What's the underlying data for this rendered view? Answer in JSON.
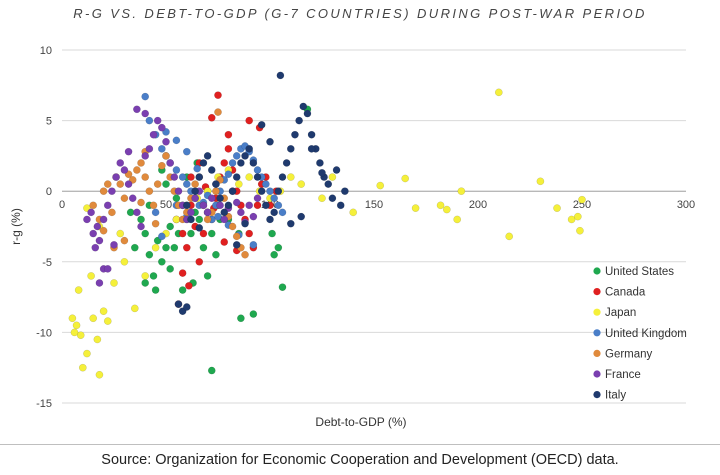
{
  "chart_data": {
    "type": "scatter",
    "title": "R-G VS. DEBT-TO-GDP (G-7 COUNTRIES) DURING POST-WAR PERIOD",
    "xlabel": "Debt-to-GDP (%)",
    "ylabel": "r-g (%)",
    "xlim": [
      0,
      300
    ],
    "ylim": [
      -15,
      10
    ],
    "x_ticks": [
      0,
      50,
      100,
      150,
      200,
      250,
      300
    ],
    "y_ticks": [
      -15,
      -10,
      -5,
      0,
      5,
      10
    ],
    "grid": "horizontal",
    "legend_position": "right",
    "series": [
      {
        "name": "United States",
        "color": "#1fa84f",
        "points": [
          [
            35,
            -4
          ],
          [
            38,
            -2
          ],
          [
            40,
            -3
          ],
          [
            42,
            -4.5
          ],
          [
            44,
            -6
          ],
          [
            46,
            -3.5
          ],
          [
            48,
            -5
          ],
          [
            50,
            -4
          ],
          [
            52,
            -2.5
          ],
          [
            54,
            -4
          ],
          [
            56,
            -3
          ],
          [
            58,
            -1
          ],
          [
            60,
            -2
          ],
          [
            62,
            -3
          ],
          [
            64,
            -1.5
          ],
          [
            66,
            -2
          ],
          [
            68,
            -4
          ],
          [
            70,
            -6
          ],
          [
            72,
            -3
          ],
          [
            74,
            -4.5
          ],
          [
            76,
            -2
          ],
          [
            42,
            -1
          ],
          [
            50,
            0.5
          ],
          [
            55,
            -0.5
          ],
          [
            60,
            1
          ],
          [
            65,
            2
          ],
          [
            70,
            0
          ],
          [
            75,
            -1
          ],
          [
            80,
            -2
          ],
          [
            85,
            -3
          ],
          [
            48,
            1.5
          ],
          [
            52,
            -5.5
          ],
          [
            45,
            -7
          ],
          [
            58,
            -7
          ],
          [
            63,
            -6.5
          ],
          [
            72,
            -12.7
          ],
          [
            86,
            -9
          ],
          [
            92,
            -8.7
          ],
          [
            101,
            -3
          ],
          [
            102,
            -4.5
          ],
          [
            104,
            -4
          ],
          [
            106,
            -6.8
          ],
          [
            118,
            5.8
          ],
          [
            40,
            -6.5
          ],
          [
            33,
            -1.5
          ]
        ]
      },
      {
        "name": "Canada",
        "color": "#e02020",
        "points": [
          [
            55,
            -2
          ],
          [
            58,
            -3
          ],
          [
            60,
            -4
          ],
          [
            62,
            -1
          ],
          [
            64,
            -2.5
          ],
          [
            66,
            -5
          ],
          [
            68,
            -3
          ],
          [
            70,
            -1.5
          ],
          [
            72,
            -2
          ],
          [
            74,
            -0.5
          ],
          [
            76,
            1
          ],
          [
            78,
            2
          ],
          [
            80,
            3
          ],
          [
            82,
            1.5
          ],
          [
            84,
            0
          ],
          [
            86,
            -1
          ],
          [
            88,
            -2
          ],
          [
            90,
            -3
          ],
          [
            92,
            -4
          ],
          [
            94,
            -1
          ],
          [
            96,
            0.5
          ],
          [
            98,
            1
          ],
          [
            72,
            5.2
          ],
          [
            75,
            6.8
          ],
          [
            80,
            4
          ],
          [
            90,
            5
          ],
          [
            95,
            4.5
          ],
          [
            58,
            -5.8
          ],
          [
            56,
            -8
          ],
          [
            61,
            -6.7
          ],
          [
            62,
            1
          ],
          [
            66,
            2
          ],
          [
            69,
            0.3
          ],
          [
            73,
            -1.2
          ],
          [
            78,
            -3.6
          ],
          [
            84,
            -4.2
          ],
          [
            100,
            -1
          ],
          [
            103,
            0
          ]
        ]
      },
      {
        "name": "Japan",
        "color": "#f5f03a",
        "points": [
          [
            5,
            -9
          ],
          [
            6,
            -10
          ],
          [
            7,
            -9.5
          ],
          [
            8,
            -7
          ],
          [
            9,
            -10.2
          ],
          [
            10,
            -12.5
          ],
          [
            12,
            -11.5
          ],
          [
            14,
            -6
          ],
          [
            15,
            -9
          ],
          [
            17,
            -10.5
          ],
          [
            18,
            -13
          ],
          [
            20,
            -8.5
          ],
          [
            22,
            -9.2
          ],
          [
            25,
            -6.5
          ],
          [
            28,
            -3
          ],
          [
            30,
            -5
          ],
          [
            35,
            -8.3
          ],
          [
            40,
            -6
          ],
          [
            45,
            -4
          ],
          [
            50,
            -3
          ],
          [
            55,
            -2
          ],
          [
            60,
            -1
          ],
          [
            65,
            -0.5
          ],
          [
            70,
            0
          ],
          [
            75,
            1
          ],
          [
            80,
            1.5
          ],
          [
            85,
            0.5
          ],
          [
            90,
            1
          ],
          [
            95,
            0
          ],
          [
            100,
            -0.5
          ],
          [
            105,
            0
          ],
          [
            110,
            1
          ],
          [
            115,
            0.5
          ],
          [
            125,
            -0.5
          ],
          [
            130,
            1
          ],
          [
            140,
            -1.5
          ],
          [
            153,
            0.4
          ],
          [
            165,
            0.9
          ],
          [
            170,
            -1.2
          ],
          [
            182,
            -1
          ],
          [
            185,
            -1.3
          ],
          [
            190,
            -2
          ],
          [
            192,
            0
          ],
          [
            210,
            7
          ],
          [
            215,
            -3.2
          ],
          [
            230,
            0.7
          ],
          [
            238,
            -1.2
          ],
          [
            245,
            -2
          ],
          [
            248,
            -1.8
          ],
          [
            249,
            -2.8
          ],
          [
            250,
            -0.6
          ],
          [
            12,
            -1.2
          ],
          [
            18,
            -2.5
          ]
        ]
      },
      {
        "name": "United Kingdom",
        "color": "#4a7ec8",
        "points": [
          [
            40,
            6.7
          ],
          [
            42,
            5
          ],
          [
            45,
            4
          ],
          [
            48,
            3
          ],
          [
            50,
            2.5
          ],
          [
            52,
            2
          ],
          [
            55,
            1.5
          ],
          [
            58,
            1
          ],
          [
            60,
            0.5
          ],
          [
            62,
            0
          ],
          [
            64,
            -0.5
          ],
          [
            66,
            -1
          ],
          [
            68,
            -0.8
          ],
          [
            70,
            -1.5
          ],
          [
            72,
            -2
          ],
          [
            74,
            -1
          ],
          [
            76,
            0
          ],
          [
            78,
            0.8
          ],
          [
            80,
            1.2
          ],
          [
            82,
            2
          ],
          [
            84,
            2.5
          ],
          [
            86,
            3
          ],
          [
            88,
            3.2
          ],
          [
            90,
            2.8
          ],
          [
            92,
            2.2
          ],
          [
            94,
            1.5
          ],
          [
            96,
            1
          ],
          [
            98,
            0.5
          ],
          [
            100,
            0
          ],
          [
            102,
            -0.5
          ],
          [
            104,
            -1
          ],
          [
            106,
            -1.5
          ],
          [
            50,
            4.2
          ],
          [
            55,
            3.6
          ],
          [
            60,
            2.8
          ],
          [
            65,
            1.6
          ],
          [
            70,
            -0.3
          ],
          [
            75,
            -1.8
          ],
          [
            80,
            -2.4
          ],
          [
            85,
            -3.1
          ],
          [
            92,
            -3.8
          ],
          [
            45,
            -1.5
          ],
          [
            48,
            -3.2
          ],
          [
            55,
            -1
          ],
          [
            60,
            -1.8
          ]
        ]
      },
      {
        "name": "Germany",
        "color": "#e08a3c",
        "points": [
          [
            15,
            -1
          ],
          [
            18,
            -2
          ],
          [
            20,
            0
          ],
          [
            22,
            0.5
          ],
          [
            24,
            -1.5
          ],
          [
            26,
            1
          ],
          [
            28,
            0.5
          ],
          [
            30,
            -0.5
          ],
          [
            32,
            1.2
          ],
          [
            34,
            0.8
          ],
          [
            36,
            1.5
          ],
          [
            38,
            2
          ],
          [
            40,
            1
          ],
          [
            42,
            0
          ],
          [
            44,
            -1
          ],
          [
            46,
            0.5
          ],
          [
            48,
            1.8
          ],
          [
            50,
            2.5
          ],
          [
            52,
            1
          ],
          [
            54,
            0
          ],
          [
            56,
            -1
          ],
          [
            58,
            -2
          ],
          [
            60,
            -1.5
          ],
          [
            62,
            -0.5
          ],
          [
            64,
            0.5
          ],
          [
            66,
            1
          ],
          [
            68,
            -1
          ],
          [
            70,
            -2
          ],
          [
            72,
            -1.5
          ],
          [
            74,
            0
          ],
          [
            76,
            0.8
          ],
          [
            78,
            -0.5
          ],
          [
            80,
            -1.8
          ],
          [
            82,
            -2.5
          ],
          [
            84,
            -3.2
          ],
          [
            86,
            -4
          ],
          [
            88,
            -4.5
          ],
          [
            75,
            5.6
          ],
          [
            40,
            2.8
          ],
          [
            45,
            -2.3
          ],
          [
            38,
            -0.8
          ],
          [
            20,
            -2.8
          ],
          [
            25,
            -4
          ],
          [
            30,
            -3.5
          ]
        ]
      },
      {
        "name": "France",
        "color": "#7a3fb0",
        "points": [
          [
            15,
            -3
          ],
          [
            16,
            -4
          ],
          [
            17,
            -2.5
          ],
          [
            18,
            -3.5
          ],
          [
            20,
            -2
          ],
          [
            22,
            -1
          ],
          [
            24,
            0
          ],
          [
            26,
            1
          ],
          [
            28,
            2
          ],
          [
            30,
            1.5
          ],
          [
            32,
            0.5
          ],
          [
            34,
            -0.5
          ],
          [
            36,
            -1.5
          ],
          [
            38,
            -2.5
          ],
          [
            40,
            2.5
          ],
          [
            42,
            3
          ],
          [
            44,
            4
          ],
          [
            46,
            5
          ],
          [
            48,
            4.5
          ],
          [
            50,
            3.5
          ],
          [
            52,
            2
          ],
          [
            54,
            1
          ],
          [
            56,
            0
          ],
          [
            58,
            -1
          ],
          [
            60,
            -2
          ],
          [
            62,
            -1.5
          ],
          [
            64,
            -0.5
          ],
          [
            66,
            0
          ],
          [
            68,
            -1
          ],
          [
            70,
            -1.5
          ],
          [
            72,
            -0.5
          ],
          [
            74,
            0.5
          ],
          [
            76,
            -1
          ],
          [
            78,
            -2
          ],
          [
            80,
            -1.2
          ],
          [
            82,
            0
          ],
          [
            84,
            -0.8
          ],
          [
            86,
            -1.5
          ],
          [
            88,
            -2.2
          ],
          [
            90,
            -1
          ],
          [
            92,
            -1.8
          ],
          [
            94,
            -0.5
          ],
          [
            36,
            5.8
          ],
          [
            40,
            5.5
          ],
          [
            32,
            2.8
          ],
          [
            20,
            -5.5
          ],
          [
            18,
            -6.5
          ],
          [
            22,
            -5.5
          ],
          [
            25,
            -3.8
          ],
          [
            14,
            -1.5
          ],
          [
            12,
            -2
          ]
        ]
      },
      {
        "name": "Italy",
        "color": "#1f3a6e",
        "points": [
          [
            60,
            -1
          ],
          [
            62,
            -2
          ],
          [
            64,
            0
          ],
          [
            66,
            1
          ],
          [
            68,
            2
          ],
          [
            70,
            2.5
          ],
          [
            72,
            1.5
          ],
          [
            74,
            0.5
          ],
          [
            76,
            -0.5
          ],
          [
            78,
            -1.5
          ],
          [
            80,
            -1
          ],
          [
            82,
            0
          ],
          [
            84,
            1
          ],
          [
            86,
            2
          ],
          [
            88,
            2.5
          ],
          [
            90,
            3
          ],
          [
            92,
            2
          ],
          [
            94,
            1
          ],
          [
            96,
            0
          ],
          [
            98,
            -1
          ],
          [
            100,
            -2
          ],
          [
            102,
            -1.5
          ],
          [
            104,
            0
          ],
          [
            106,
            1
          ],
          [
            108,
            2
          ],
          [
            110,
            3
          ],
          [
            112,
            4
          ],
          [
            114,
            5
          ],
          [
            116,
            6
          ],
          [
            118,
            5.5
          ],
          [
            120,
            4
          ],
          [
            122,
            3
          ],
          [
            124,
            2
          ],
          [
            126,
            1
          ],
          [
            128,
            0.5
          ],
          [
            130,
            -0.5
          ],
          [
            132,
            1.5
          ],
          [
            134,
            -1
          ],
          [
            136,
            0
          ],
          [
            100,
            3.5
          ],
          [
            105,
            8.2
          ],
          [
            110,
            -2.3
          ],
          [
            115,
            -1.8
          ],
          [
            120,
            3
          ],
          [
            125,
            1.3
          ],
          [
            58,
            -8.5
          ],
          [
            60,
            -8.2
          ],
          [
            56,
            -8
          ],
          [
            88,
            -2.3
          ],
          [
            84,
            -3.8
          ],
          [
            66,
            -2.6
          ],
          [
            96,
            4.7
          ]
        ]
      }
    ],
    "source": "Source: Organization for Economic Cooperation and Development (OECD) data."
  }
}
